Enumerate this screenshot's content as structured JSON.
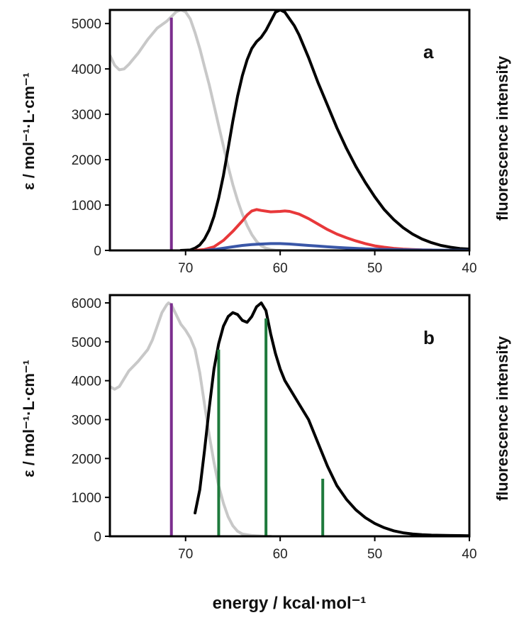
{
  "chart_data": [
    {
      "type": "line",
      "panel_label": "a",
      "xlim": [
        78,
        40
      ],
      "ylim": [
        0,
        5300
      ],
      "x_ticks": [
        70,
        60,
        50,
        40
      ],
      "y_ticks": [
        0,
        1000,
        2000,
        3000,
        4000,
        5000
      ],
      "ylabel_left": "ε / mol⁻¹·L·cm⁻¹",
      "ylabel_right": "fluorescence intensity",
      "series": [
        {
          "color": "#c8c8c8",
          "points": [
            [
              78,
              4300
            ],
            [
              77.5,
              4080
            ],
            [
              77,
              3980
            ],
            [
              76.5,
              4000
            ],
            [
              76,
              4100
            ],
            [
              75,
              4350
            ],
            [
              74,
              4650
            ],
            [
              73,
              4900
            ],
            [
              72,
              5050
            ],
            [
              71.5,
              5150
            ],
            [
              71,
              5260
            ],
            [
              70.5,
              5300
            ],
            [
              70,
              5260
            ],
            [
              69.5,
              5100
            ],
            [
              69,
              4800
            ],
            [
              68.5,
              4450
            ],
            [
              68,
              4050
            ],
            [
              67.5,
              3650
            ],
            [
              67,
              3200
            ],
            [
              66.5,
              2750
            ],
            [
              66,
              2300
            ],
            [
              65.5,
              1850
            ],
            [
              65,
              1450
            ],
            [
              64.5,
              1100
            ],
            [
              64,
              800
            ],
            [
              63.5,
              550
            ],
            [
              63,
              350
            ],
            [
              62.5,
              200
            ],
            [
              62,
              100
            ],
            [
              61.5,
              50
            ],
            [
              61,
              20
            ],
            [
              60.5,
              5
            ],
            [
              60,
              0
            ]
          ]
        },
        {
          "color": "#000000",
          "points": [
            [
              70.5,
              0
            ],
            [
              69.5,
              10
            ],
            [
              69,
              50
            ],
            [
              68.5,
              120
            ],
            [
              68,
              250
            ],
            [
              67.5,
              450
            ],
            [
              67,
              750
            ],
            [
              66.5,
              1150
            ],
            [
              66,
              1650
            ],
            [
              65.5,
              2250
            ],
            [
              65,
              2850
            ],
            [
              64.5,
              3400
            ],
            [
              64,
              3850
            ],
            [
              63.5,
              4200
            ],
            [
              63,
              4450
            ],
            [
              62.5,
              4600
            ],
            [
              62,
              4700
            ],
            [
              61.5,
              4850
            ],
            [
              61,
              5050
            ],
            [
              60.5,
              5250
            ],
            [
              60,
              5300
            ],
            [
              59.5,
              5250
            ],
            [
              59,
              5100
            ],
            [
              58.5,
              4950
            ],
            [
              58,
              4750
            ],
            [
              57.5,
              4500
            ],
            [
              57,
              4250
            ],
            [
              56,
              3700
            ],
            [
              55,
              3200
            ],
            [
              54,
              2700
            ],
            [
              53,
              2250
            ],
            [
              52,
              1850
            ],
            [
              51,
              1500
            ],
            [
              50,
              1180
            ],
            [
              49,
              900
            ],
            [
              48,
              680
            ],
            [
              47,
              500
            ],
            [
              46,
              360
            ],
            [
              45,
              250
            ],
            [
              44,
              170
            ],
            [
              43,
              110
            ],
            [
              42,
              70
            ],
            [
              41,
              40
            ],
            [
              40,
              30
            ]
          ]
        },
        {
          "color": "#e8383a",
          "points": [
            [
              69,
              0
            ],
            [
              68,
              20
            ],
            [
              67,
              80
            ],
            [
              66,
              220
            ],
            [
              65,
              420
            ],
            [
              64,
              650
            ],
            [
              63.5,
              780
            ],
            [
              63,
              870
            ],
            [
              62.5,
              900
            ],
            [
              62,
              880
            ],
            [
              61,
              850
            ],
            [
              60,
              860
            ],
            [
              59.5,
              870
            ],
            [
              59,
              860
            ],
            [
              58,
              800
            ],
            [
              57,
              700
            ],
            [
              56,
              580
            ],
            [
              55,
              460
            ],
            [
              54,
              360
            ],
            [
              53,
              280
            ],
            [
              52,
              210
            ],
            [
              51,
              150
            ],
            [
              50,
              100
            ],
            [
              49,
              70
            ],
            [
              48,
              45
            ],
            [
              47,
              30
            ],
            [
              46,
              20
            ],
            [
              45,
              12
            ],
            [
              44,
              10
            ]
          ]
        },
        {
          "color": "#3a57a8",
          "points": [
            [
              68,
              0
            ],
            [
              67,
              20
            ],
            [
              66,
              50
            ],
            [
              65,
              80
            ],
            [
              64,
              110
            ],
            [
              63,
              130
            ],
            [
              62,
              140
            ],
            [
              61,
              150
            ],
            [
              60,
              150
            ],
            [
              59,
              140
            ],
            [
              58,
              125
            ],
            [
              57,
              110
            ],
            [
              56,
              95
            ],
            [
              55,
              80
            ],
            [
              54,
              65
            ],
            [
              53,
              55
            ],
            [
              52,
              45
            ],
            [
              51,
              35
            ],
            [
              50,
              28
            ],
            [
              49,
              22
            ],
            [
              48,
              18
            ],
            [
              47,
              15
            ],
            [
              46,
              12
            ],
            [
              45,
              10
            ],
            [
              44,
              8
            ],
            [
              43,
              6
            ],
            [
              42,
              5
            ],
            [
              41,
              4
            ],
            [
              40,
              3
            ]
          ]
        }
      ],
      "vlines": [
        {
          "color": "#7b2d8e",
          "x": 71.5,
          "y": 5130
        }
      ]
    },
    {
      "type": "line",
      "panel_label": "b",
      "xlim": [
        78,
        40
      ],
      "ylim": [
        0,
        6200
      ],
      "x_ticks": [
        70,
        60,
        50,
        40
      ],
      "y_ticks": [
        0,
        1000,
        2000,
        3000,
        4000,
        5000,
        6000
      ],
      "xlabel": "energy / kcal·mol⁻¹",
      "ylabel_left": "ε / mol⁻¹·L·cm⁻¹",
      "ylabel_right": "fluorescence intensity",
      "series": [
        {
          "color": "#c8c8c8",
          "points": [
            [
              78,
              3850
            ],
            [
              77.5,
              3780
            ],
            [
              77,
              3850
            ],
            [
              76.5,
              4050
            ],
            [
              76,
              4250
            ],
            [
              75,
              4500
            ],
            [
              74,
              4800
            ],
            [
              73.5,
              5050
            ],
            [
              73,
              5400
            ],
            [
              72.5,
              5750
            ],
            [
              72,
              5950
            ],
            [
              71.8,
              6000
            ],
            [
              71.5,
              5950
            ],
            [
              71,
              5700
            ],
            [
              70.5,
              5450
            ],
            [
              70,
              5300
            ],
            [
              69.5,
              5100
            ],
            [
              69,
              4800
            ],
            [
              68.5,
              4200
            ],
            [
              68,
              3400
            ],
            [
              67.5,
              2600
            ],
            [
              67,
              1900
            ],
            [
              66.5,
              1300
            ],
            [
              66,
              850
            ],
            [
              65.5,
              500
            ],
            [
              65,
              270
            ],
            [
              64.5,
              130
            ],
            [
              64,
              60
            ],
            [
              63,
              20
            ],
            [
              62,
              5
            ],
            [
              61,
              0
            ]
          ]
        },
        {
          "color": "#000000",
          "points": [
            [
              69,
              600
            ],
            [
              68.5,
              1200
            ],
            [
              68,
              2200
            ],
            [
              67.5,
              3300
            ],
            [
              67,
              4300
            ],
            [
              66.5,
              4950
            ],
            [
              66,
              5400
            ],
            [
              65.5,
              5650
            ],
            [
              65,
              5750
            ],
            [
              64.5,
              5700
            ],
            [
              64,
              5550
            ],
            [
              63.5,
              5500
            ],
            [
              63,
              5650
            ],
            [
              62.5,
              5900
            ],
            [
              62,
              6000
            ],
            [
              61.5,
              5800
            ],
            [
              61,
              5200
            ],
            [
              60.5,
              4700
            ],
            [
              60,
              4300
            ],
            [
              59.5,
              4000
            ],
            [
              59,
              3800
            ],
            [
              58,
              3400
            ],
            [
              57,
              3000
            ],
            [
              56,
              2400
            ],
            [
              55,
              1800
            ],
            [
              54,
              1300
            ],
            [
              53,
              950
            ],
            [
              52,
              680
            ],
            [
              51,
              480
            ],
            [
              50,
              330
            ],
            [
              49,
              220
            ],
            [
              48,
              140
            ],
            [
              47,
              90
            ],
            [
              46,
              60
            ],
            [
              45,
              40
            ],
            [
              44,
              30
            ],
            [
              43,
              25
            ],
            [
              42,
              20
            ],
            [
              41,
              18
            ],
            [
              40,
              15
            ]
          ]
        }
      ],
      "vlines": [
        {
          "color": "#7b2d8e",
          "x": 71.5,
          "y": 5990
        },
        {
          "color": "#1e7a3c",
          "x": 66.5,
          "y": 4800
        },
        {
          "color": "#1e7a3c",
          "x": 61.5,
          "y": 5600
        },
        {
          "color": "#1e7a3c",
          "x": 55.5,
          "y": 1480
        }
      ]
    }
  ]
}
